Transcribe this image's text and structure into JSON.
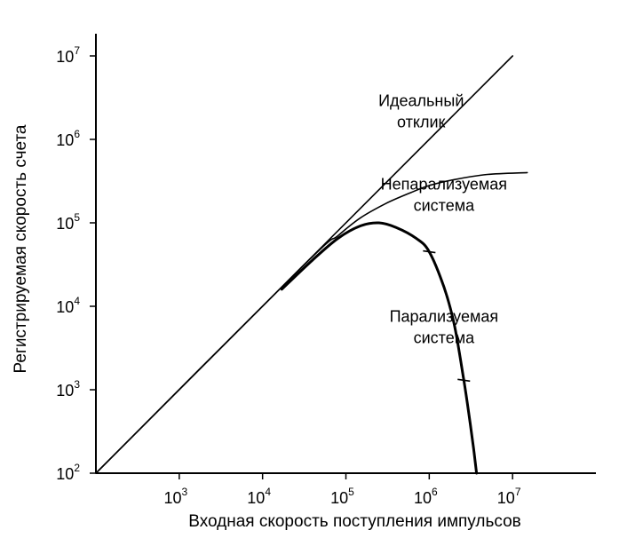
{
  "chart_data": {
    "type": "line",
    "x_scale": "log",
    "y_scale": "log",
    "xlim": [
      100,
      100000000
    ],
    "ylim": [
      100,
      10000000
    ],
    "xlabel": "Входная скорость поступления импульсов",
    "ylabel": "Регистрируемая скорость счета",
    "x_ticks": [
      {
        "value": 1000,
        "base": "10",
        "exp": "3"
      },
      {
        "value": 10000,
        "base": "10",
        "exp": "4"
      },
      {
        "value": 100000,
        "base": "10",
        "exp": "5"
      },
      {
        "value": 1000000,
        "base": "10",
        "exp": "6"
      },
      {
        "value": 10000000,
        "base": "10",
        "exp": "7"
      }
    ],
    "y_ticks": [
      {
        "value": 100,
        "base": "10",
        "exp": "2"
      },
      {
        "value": 1000,
        "base": "10",
        "exp": "3"
      },
      {
        "value": 10000,
        "base": "10",
        "exp": "4"
      },
      {
        "value": 100000,
        "base": "10",
        "exp": "5"
      },
      {
        "value": 1000000,
        "base": "10",
        "exp": "6"
      },
      {
        "value": 10000000,
        "base": "10",
        "exp": "7"
      }
    ],
    "grid": false,
    "legend": "none",
    "series": [
      {
        "name": "Идеальный отклик",
        "label_lines": [
          "Идеальный",
          "отклик"
        ],
        "label_anchor": {
          "x": 800000,
          "y": 2500000
        },
        "stroke": "#000000",
        "points": [
          [
            100,
            100
          ],
          [
            10000000,
            10000000
          ]
        ]
      },
      {
        "name": "Непарализуемая система",
        "label_lines": [
          "Непарализуемая",
          "система"
        ],
        "label_anchor": {
          "x": 1500000,
          "y": 250000
        },
        "stroke": "#000000",
        "points": [
          [
            100,
            100
          ],
          [
            30000,
            30000
          ],
          [
            80000,
            70000
          ],
          [
            150000,
            115000
          ],
          [
            300000,
            170000
          ],
          [
            600000,
            230000
          ],
          [
            1000000,
            280000
          ],
          [
            2000000,
            330000
          ],
          [
            5000000,
            380000
          ],
          [
            15000000,
            400000
          ]
        ]
      },
      {
        "name": "Парализуемая система",
        "label_lines": [
          "Парализуемая",
          "система"
        ],
        "label_anchor": {
          "x": 1500000,
          "y": 6500
        },
        "stroke": "#000000",
        "bold": true,
        "points": [
          [
            17000,
            16000
          ],
          [
            40000,
            36000
          ],
          [
            80000,
            65000
          ],
          [
            150000,
            92000
          ],
          [
            250000,
            100000
          ],
          [
            400000,
            88000
          ],
          [
            700000,
            65000
          ],
          [
            1000000,
            45000
          ],
          [
            1500000,
            17000
          ],
          [
            2000000,
            6000
          ],
          [
            2600000,
            1300
          ],
          [
            3000000,
            500
          ],
          [
            3400000,
            200
          ],
          [
            3700000,
            100
          ]
        ],
        "tick_marks": [
          [
            1000000,
            45000
          ],
          [
            2600000,
            1300
          ]
        ]
      }
    ]
  }
}
